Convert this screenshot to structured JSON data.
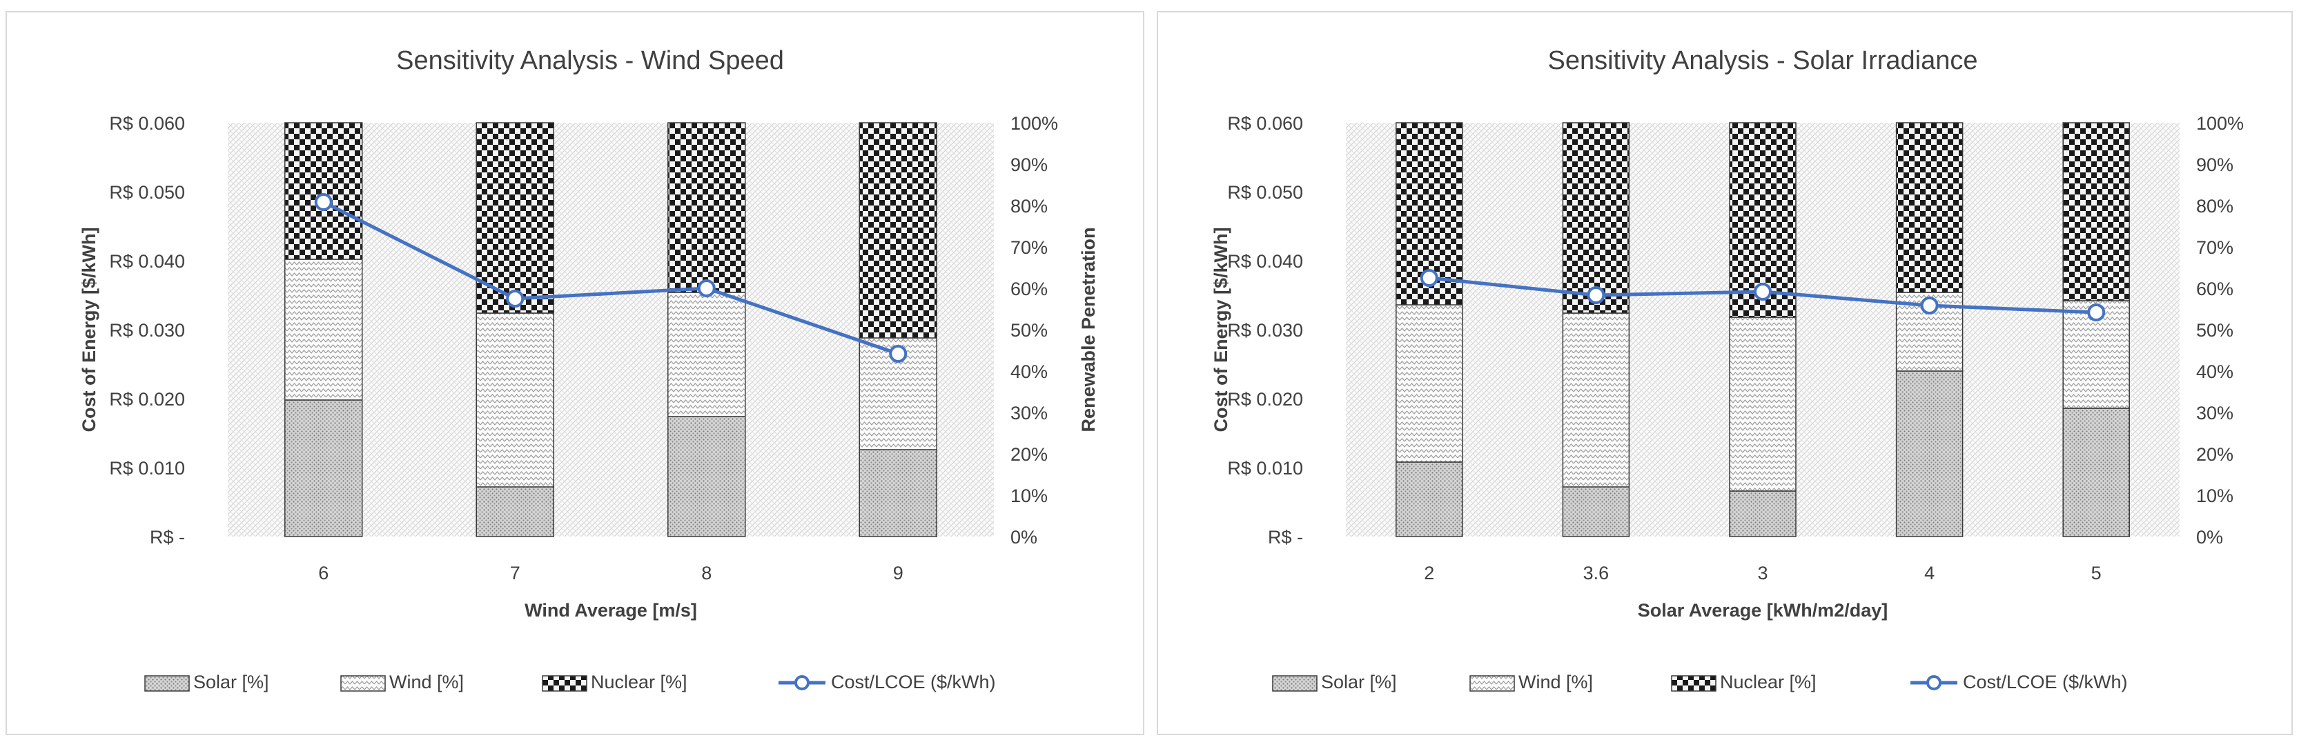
{
  "colors": {
    "bar_stroke": "#3a3a3a",
    "line": "#4472c4",
    "plot_bg": "#f2f2f2",
    "text": "#404040",
    "grid": "#d9d9d9"
  },
  "legend": {
    "solar": "Solar [%]",
    "wind": "Wind [%]",
    "nuclear": "Nuclear [%]",
    "cost": "Cost/LCOE ($/kWh)"
  },
  "chart_data": [
    {
      "type": "bar",
      "stacked": true,
      "title": "Sensitivity Analysis - Wind Speed",
      "xlabel": "Wind Average [m/s]",
      "ylabel": "Cost of Energy [$/kWh]",
      "y2label": "Renewable Penetration",
      "categories": [
        "6",
        "7",
        "8",
        "9"
      ],
      "ylim": [
        0,
        0.06
      ],
      "y2lim": [
        0,
        100
      ],
      "y_ticks": [
        "R$ -",
        "R$ 0.010",
        "R$ 0.020",
        "R$ 0.030",
        "R$ 0.040",
        "R$ 0.050",
        "R$ 0.060"
      ],
      "y2_ticks": [
        "0%",
        "10%",
        "20%",
        "30%",
        "40%",
        "50%",
        "60%",
        "70%",
        "80%",
        "90%",
        "100%"
      ],
      "series": [
        {
          "name": "Solar [%]",
          "axis": "right",
          "values": [
            33,
            12,
            29,
            21
          ]
        },
        {
          "name": "Wind [%]",
          "axis": "right",
          "values": [
            34,
            42,
            30,
            27
          ]
        },
        {
          "name": "Nuclear [%]",
          "axis": "right",
          "values": [
            33,
            46,
            41,
            52
          ]
        },
        {
          "name": "Cost/LCOE ($/kWh)",
          "type": "line",
          "axis": "left",
          "values": [
            0.0485,
            0.0345,
            0.036,
            0.0265
          ]
        }
      ],
      "legend_position": "bottom"
    },
    {
      "type": "bar",
      "stacked": true,
      "title": "Sensitivity Analysis - Solar Irradiance",
      "xlabel": "Solar Average [kWh/m2/day]",
      "ylabel": "Cost of Energy [$/kWh]",
      "y2label": "",
      "categories": [
        "2",
        "3.6",
        "3",
        "4",
        "5"
      ],
      "ylim": [
        0,
        0.06
      ],
      "y2lim": [
        0,
        100
      ],
      "y_ticks": [
        "R$ -",
        "R$ 0.010",
        "R$ 0.020",
        "R$ 0.030",
        "R$ 0.040",
        "R$ 0.050",
        "R$ 0.060"
      ],
      "y2_ticks": [
        "0%",
        "10%",
        "20%",
        "30%",
        "40%",
        "50%",
        "60%",
        "70%",
        "80%",
        "90%",
        "100%"
      ],
      "series": [
        {
          "name": "Solar [%]",
          "axis": "right",
          "values": [
            18,
            12,
            11,
            40,
            31
          ]
        },
        {
          "name": "Wind [%]",
          "axis": "right",
          "values": [
            38,
            42,
            42,
            19,
            26
          ]
        },
        {
          "name": "Nuclear [%]",
          "axis": "right",
          "values": [
            44,
            46,
            47,
            41,
            43
          ]
        },
        {
          "name": "Cost/LCOE ($/kWh)",
          "type": "line",
          "axis": "left",
          "values": [
            0.0375,
            0.035,
            0.0355,
            0.0335,
            0.0325
          ]
        }
      ],
      "legend_position": "bottom"
    }
  ]
}
